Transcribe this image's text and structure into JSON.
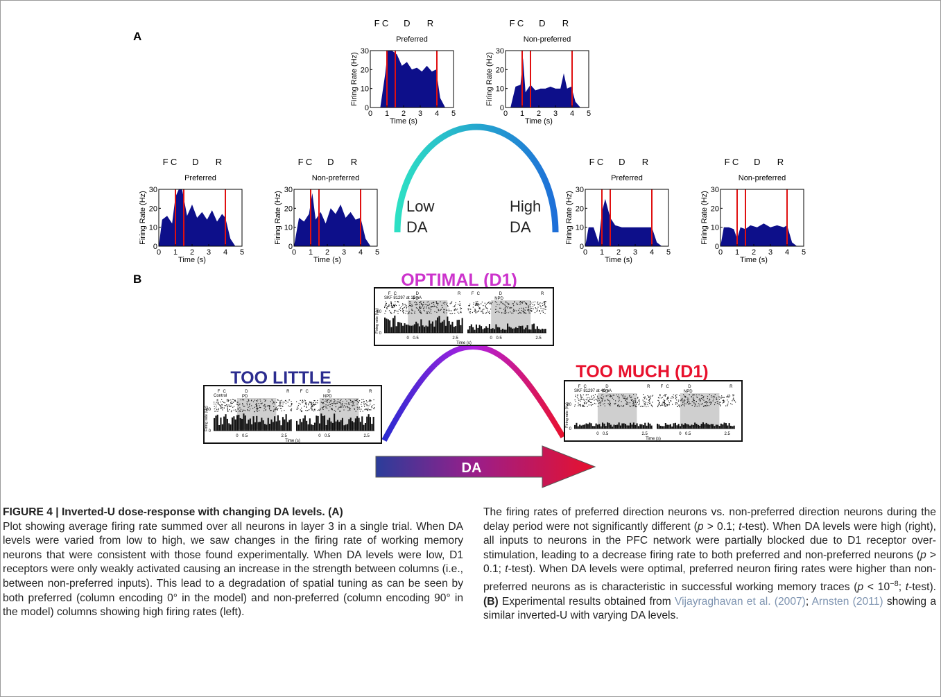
{
  "panel_a": {
    "label": "A",
    "epoch_labels": [
      "F",
      "C",
      "D",
      "R"
    ],
    "ylabel": "Firing Rate (Hz)",
    "xlabel": "Time (s)",
    "xticks": [
      "0",
      "1",
      "2",
      "3",
      "4",
      "5"
    ],
    "yticks": [
      "0",
      "10",
      "20",
      "30"
    ],
    "arc_low": [
      "Low",
      "DA"
    ],
    "arc_high": [
      "High",
      "DA"
    ],
    "plot_fill_color": "#0d0f8a",
    "event_line_color": "#e01010",
    "arc_gradient": [
      "#2de0c4",
      "#1e6fd8"
    ]
  },
  "panel_b": {
    "label": "B",
    "optimal_title": "OPTIMAL (D1)",
    "too_little_title": "TOO LITTLE",
    "too_much_title": "TOO MUCH (D1)",
    "arrow_label": "DA",
    "optimal_drug": "SKF 81297 at 15 nA",
    "too_much_drug": "SKF 81297 at 40 nA",
    "too_little_drug": "Control",
    "pd": "PD",
    "npd": "NPD",
    "raster_epochs": [
      "F",
      "C",
      "D",
      "R"
    ],
    "firing_rate_label": "Firing rate (Hz)",
    "y_top": "80",
    "y_zero": "0",
    "time_ticks": [
      "0",
      "0.5",
      "2.5"
    ],
    "time_label": "Time (s)",
    "optimal_color": "#cc33cc",
    "too_little_color": "#2b2c8f",
    "too_much_color": "#e8112d",
    "arrow_gradient": [
      "#2b3d9a",
      "#9a1e8a",
      "#e8112d"
    ],
    "curve_gradient": [
      "#2a2ad0",
      "#b020e0",
      "#e8112d"
    ]
  },
  "chart_data": [
    {
      "type": "area",
      "title": "Preferred",
      "position": "top-left",
      "dopamine": "optimal",
      "xlabel": "Time (s)",
      "ylabel": "Firing Rate (Hz)",
      "xlim": [
        0,
        5
      ],
      "ylim": [
        0,
        30
      ],
      "x": [
        0,
        0.3,
        0.6,
        0.9,
        1.05,
        1.3,
        1.6,
        1.9,
        2.2,
        2.5,
        2.8,
        3.1,
        3.4,
        3.7,
        3.95,
        4.2,
        4.5
      ],
      "y": [
        0,
        0,
        0,
        18,
        30,
        30,
        28,
        22,
        24,
        20,
        21,
        19,
        22,
        19,
        20,
        5,
        0
      ],
      "events": [
        1.0,
        1.5,
        4.0
      ]
    },
    {
      "type": "area",
      "title": "Non-preferred",
      "position": "top-right",
      "dopamine": "optimal",
      "xlabel": "Time (s)",
      "ylabel": "Firing Rate (Hz)",
      "xlim": [
        0,
        5
      ],
      "ylim": [
        0,
        30
      ],
      "x": [
        0,
        0.3,
        0.6,
        0.9,
        1.05,
        1.2,
        1.5,
        1.8,
        2.1,
        2.4,
        2.7,
        3.0,
        3.3,
        3.5,
        3.7,
        3.95,
        4.2,
        4.5
      ],
      "y": [
        0,
        0,
        11,
        12,
        26,
        8,
        12,
        9,
        10,
        10,
        11,
        10,
        10,
        18,
        10,
        11,
        3,
        0
      ],
      "events": [
        1.0,
        1.5,
        4.0
      ]
    },
    {
      "type": "area",
      "title": "Preferred",
      "position": "middle-left",
      "dopamine": "low",
      "xlabel": "Time (s)",
      "ylabel": "Firing Rate (Hz)",
      "xlim": [
        0,
        5
      ],
      "ylim": [
        0,
        30
      ],
      "x": [
        0,
        0.2,
        0.5,
        0.8,
        1.0,
        1.2,
        1.4,
        1.7,
        2.0,
        2.3,
        2.6,
        2.9,
        3.2,
        3.5,
        3.8,
        4.0,
        4.3,
        4.6
      ],
      "y": [
        0,
        14,
        16,
        12,
        26,
        30,
        30,
        16,
        22,
        15,
        18,
        14,
        19,
        13,
        17,
        15,
        4,
        0
      ],
      "events": [
        1.0,
        1.5,
        4.0
      ]
    },
    {
      "type": "area",
      "title": "Non-preferred",
      "position": "middle-center",
      "dopamine": "low",
      "xlabel": "Time (s)",
      "ylabel": "Firing Rate (Hz)",
      "xlim": [
        0,
        5
      ],
      "ylim": [
        0,
        30
      ],
      "x": [
        0,
        0.3,
        0.6,
        0.9,
        1.1,
        1.3,
        1.6,
        1.9,
        2.2,
        2.5,
        2.8,
        3.1,
        3.4,
        3.7,
        4.0,
        4.3,
        4.6
      ],
      "y": [
        0,
        15,
        13,
        17,
        28,
        14,
        18,
        12,
        20,
        17,
        22,
        15,
        18,
        14,
        15,
        4,
        0
      ],
      "events": [
        1.0,
        1.5,
        4.0
      ]
    },
    {
      "type": "area",
      "title": "Preferred",
      "position": "middle-right",
      "dopamine": "high",
      "xlabel": "Time (s)",
      "ylabel": "Firing Rate (Hz)",
      "xlim": [
        0,
        5
      ],
      "ylim": [
        0,
        30
      ],
      "x": [
        0,
        0.2,
        0.5,
        0.8,
        1.0,
        1.2,
        1.5,
        1.8,
        2.2,
        2.6,
        3.0,
        3.4,
        3.8,
        4.0,
        4.3,
        4.6
      ],
      "y": [
        0,
        10,
        10,
        2,
        18,
        25,
        15,
        11,
        10,
        10,
        10,
        10,
        10,
        10,
        2,
        0
      ],
      "events": [
        1.0,
        1.5,
        4.0
      ]
    },
    {
      "type": "area",
      "title": "Non-preferred",
      "position": "far-right",
      "dopamine": "high",
      "xlabel": "Time (s)",
      "ylabel": "Firing Rate (Hz)",
      "xlim": [
        0,
        5
      ],
      "ylim": [
        0,
        30
      ],
      "x": [
        0,
        0.2,
        0.5,
        0.8,
        1.0,
        1.2,
        1.5,
        1.8,
        2.2,
        2.6,
        3.0,
        3.4,
        3.8,
        4.0,
        4.3,
        4.6
      ],
      "y": [
        0,
        10,
        10,
        9,
        4,
        10,
        9,
        11,
        10,
        12,
        10,
        11,
        10,
        11,
        2,
        0
      ],
      "events": [
        1.0,
        1.5,
        4.0
      ]
    }
  ],
  "caption": {
    "title": "FIGURE 4 | Inverted-U dose-response with changing DA levels. (A)",
    "left_text": "Plot showing average firing rate summed over all neurons in layer 3 in a single trial. When DA levels were varied from low to high, we saw changes in the firing rate of working memory neurons that were consistent with those found experimentally. When DA levels were low, D1 receptors were only weakly activated causing an increase in the strength between columns (i.e., between non-preferred inputs). This lead to a degradation of spatial tuning as can be seen by both preferred (column encoding 0° in the model) and non-preferred (column encoding 90° in the model) columns showing high firing rates (left).",
    "right_1": "The firing rates of preferred direction neurons vs. non-preferred direction neurons during the delay period were not significantly different (",
    "p": "p",
    "right_2": " > 0.1; ",
    "t": "t",
    "right_3": "-test). When DA levels were high (right), all inputs to neurons in the PFC network were partially blocked due to D1 receptor over-stimulation, leading to a decrease firing rate to both preferred and non-preferred neurons (",
    "right_4": " > 0.1; ",
    "right_5": "-test). When DA levels were optimal, preferred neuron firing rates were higher than non-preferred neurons as is characteristic in successful working memory traces (",
    "right_6": " < 10",
    "exp": "−8",
    "right_7": "; ",
    "right_8": "-test). ",
    "b_label": "(B)",
    "right_9": " Experimental results obtained from ",
    "ref1": "Vijayraghavan et al. (2007)",
    "right_10": "; ",
    "ref2": "Arnsten (2011)",
    "right_11": " showing a similar inverted-U with varying DA levels."
  }
}
